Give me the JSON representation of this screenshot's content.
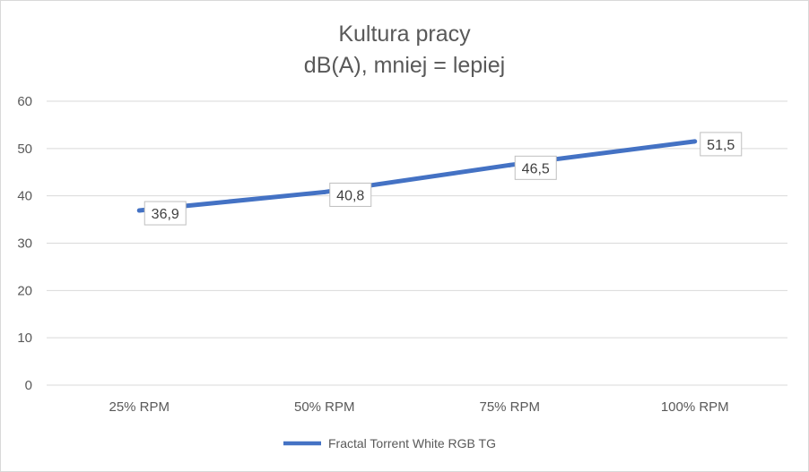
{
  "chart_data": {
    "type": "line",
    "title": "Kultura pracy",
    "subtitle": "dB(A), mniej = lepiej",
    "categories": [
      "25% RPM",
      "50% RPM",
      "75% RPM",
      "100% RPM"
    ],
    "series": [
      {
        "name": "Fractal Torrent White RGB TG",
        "values": [
          36.9,
          40.8,
          46.5,
          51.5
        ],
        "labels": [
          "36,9",
          "40,8",
          "46,5",
          "51,5"
        ],
        "color": "#4472c4"
      }
    ],
    "ylim": [
      0,
      60
    ],
    "yticks": [
      "0",
      "10",
      "20",
      "30",
      "40",
      "50",
      "60"
    ],
    "grid": true,
    "legend": "bottom"
  }
}
